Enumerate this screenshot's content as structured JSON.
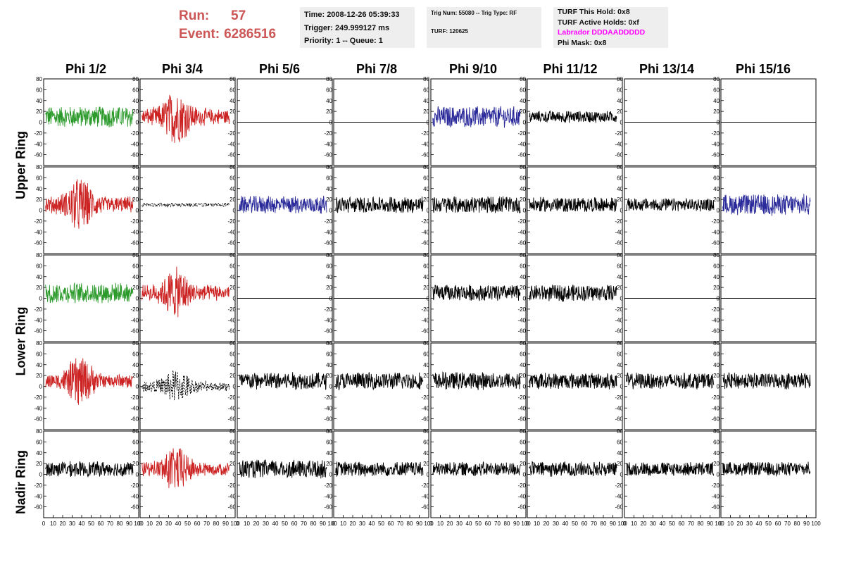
{
  "header": {
    "run_label": "Run:",
    "run_value": "57",
    "event_label": "Event:",
    "event_value": "6286516"
  },
  "info_time": {
    "time": "Time: 2008-12-26 05:39:33",
    "trigger": "Trigger: 249.999127 ms",
    "priority": "Priority: 1 -- Queue: 1"
  },
  "info_trig": {
    "trig": "Trig Num: 55080 -- Trig Type: RF",
    "turf": "TURF: 120625"
  },
  "info_turf": {
    "hold": "TURF This Hold: 0x8",
    "active": "TURF Active Holds: 0xf",
    "labrador": "Labrador DDDAADDDDD",
    "phimask": "Phi Mask: 0x8"
  },
  "colors": {
    "green": "#2b9a2b",
    "red": "#cc2222",
    "blue": "#2a2a9a",
    "black": "#000000",
    "header_red": "#cc5555",
    "magenta": "#ff00ff",
    "info_bg": "#eeeeee"
  },
  "phi_labels": [
    "Phi 1/2",
    "Phi 3/4",
    "Phi 5/6",
    "Phi 7/8",
    "Phi 9/10",
    "Phi 11/12",
    "Phi 13/14",
    "Phi 15/16"
  ],
  "ring_labels": [
    "Upper Ring",
    "Lower Ring",
    "Nadir Ring"
  ],
  "y_ticks": [
    "80",
    "60",
    "40",
    "20",
    "0",
    "-20",
    "-40",
    "-60"
  ],
  "x_ticks": [
    "0",
    "10",
    "20",
    "30",
    "40",
    "50",
    "60",
    "70",
    "80",
    "90",
    "100"
  ],
  "chart_data": {
    "type": "line",
    "xlim": [
      0,
      100
    ],
    "ylim": [
      -80,
      80
    ],
    "grid": false,
    "rows": 5,
    "columns": 8,
    "panels": [
      [
        "green",
        "red",
        "flat",
        "flat",
        "blue",
        "black",
        "flat",
        "flat"
      ],
      [
        "red",
        "dash_small",
        "blue",
        "black",
        "black",
        "black",
        "black",
        "blue"
      ],
      [
        "green",
        "red",
        "flat",
        "flat",
        "black",
        "black",
        "flat",
        "flat"
      ],
      [
        "red",
        "dash_big",
        "black",
        "black",
        "black",
        "black",
        "black",
        "black"
      ],
      [
        "black",
        "red",
        "black",
        "black",
        "black",
        "black",
        "black",
        "black"
      ]
    ],
    "amplitudes": [
      [
        18,
        28,
        0,
        0,
        18,
        10,
        0,
        0
      ],
      [
        28,
        3,
        15,
        14,
        15,
        13,
        11,
        18
      ],
      [
        17,
        26,
        0,
        0,
        14,
        14,
        0,
        0
      ],
      [
        26,
        18,
        15,
        15,
        15,
        14,
        14,
        14
      ],
      [
        13,
        24,
        16,
        13,
        12,
        13,
        12,
        12
      ]
    ]
  }
}
